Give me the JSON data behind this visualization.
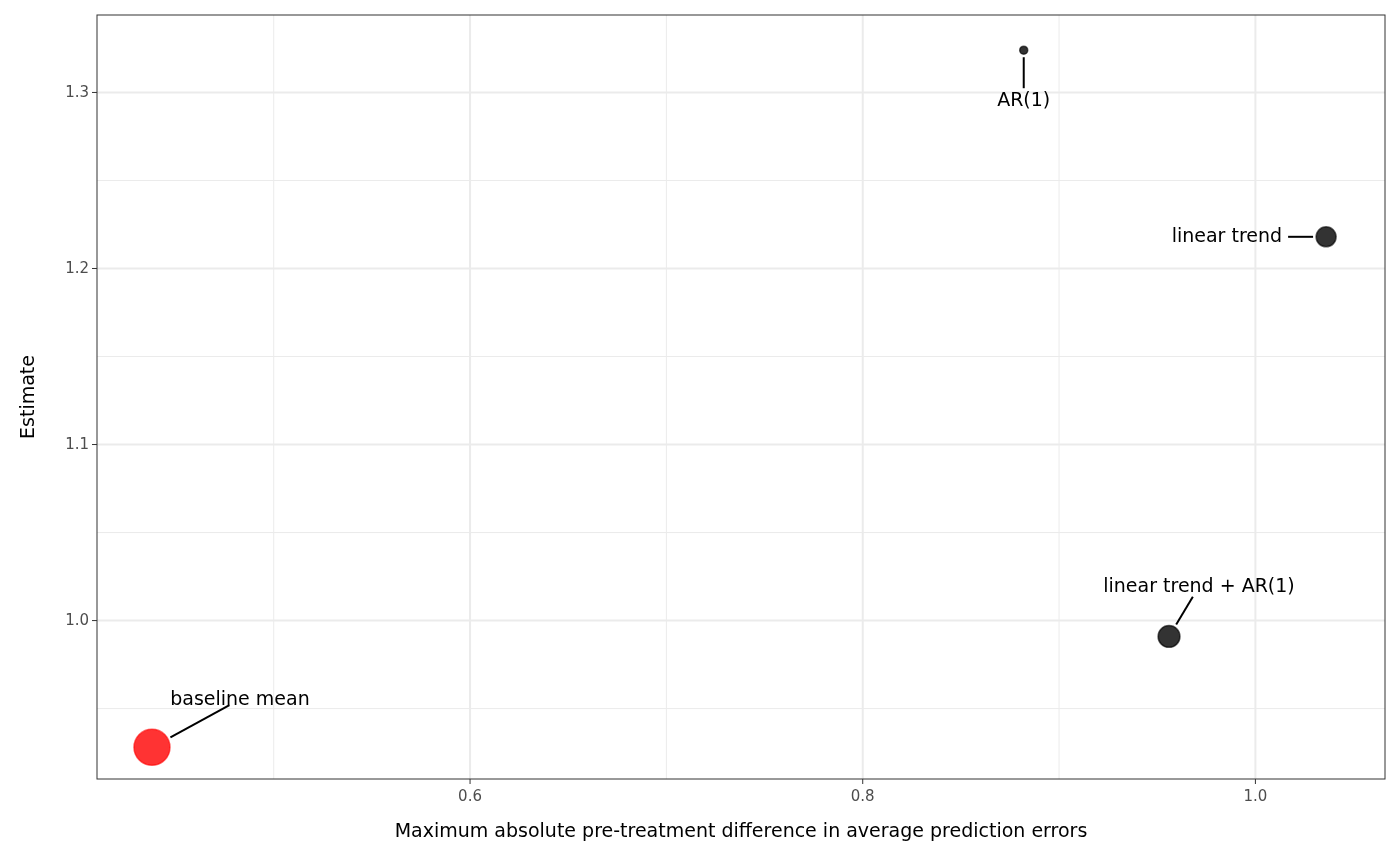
{
  "chart_data": {
    "type": "bubble",
    "xlabel": "Maximum absolute pre-treatment difference in average prediction errors",
    "ylabel": "Estimate",
    "x": [
      0.438,
      0.882,
      1.036,
      0.956
    ],
    "values": [
      0.928,
      1.324,
      1.218,
      0.991
    ],
    "sizes": [
      1,
      0.05,
      0.31,
      0.37
    ],
    "colors": [
      "#ff3333",
      "#333333",
      "#333333",
      "#333333"
    ],
    "xlim": [
      0.41,
      1.066
    ],
    "ylim": [
      0.91,
      1.344
    ],
    "xticks": [
      {
        "value": 0.5,
        "label": null
      },
      0.6,
      {
        "value": 0.7,
        "label": null
      },
      0.8,
      {
        "value": 0.9,
        "label": null
      },
      {
        "value": 1,
        "label": "1.0"
      }
    ],
    "yticks": [
      {
        "value": 0.95,
        "label": null
      },
      {
        "value": 1,
        "label": "1.0"
      },
      {
        "value": 1.05,
        "label": null
      },
      1.1,
      {
        "value": 1.15,
        "label": null
      },
      1.2,
      {
        "value": 1.25,
        "label": null
      },
      1.3
    ],
    "grid": true,
    "annotations": [
      {
        "text": "baseline mean",
        "x": 0.438,
        "y": 0.928
      },
      {
        "text": "AR(1)",
        "x": 0.882,
        "y": 1.324
      },
      {
        "text": "linear trend",
        "x": 1.036,
        "y": 1.218
      },
      {
        "text": "linear trend + AR(1)",
        "x": 0.956,
        "y": 0.991
      }
    ]
  }
}
